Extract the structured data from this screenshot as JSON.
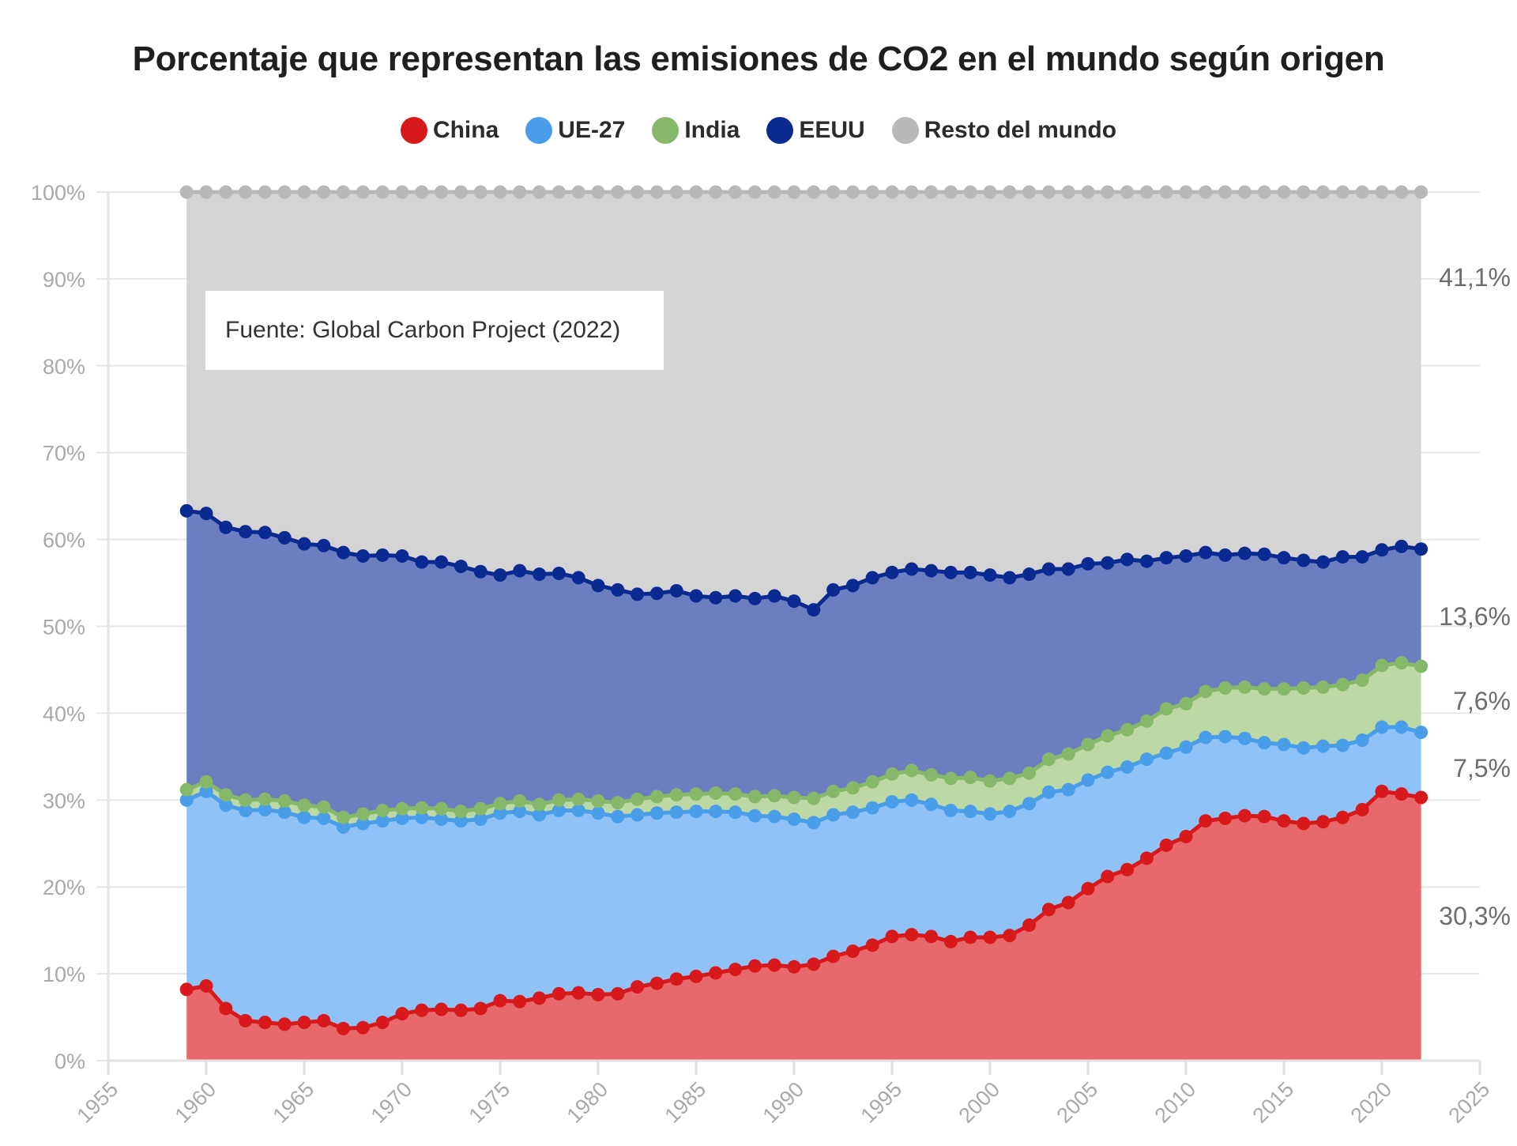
{
  "chart_data": {
    "type": "area",
    "stacked": true,
    "title": "Porcentaje que representan las emisiones de CO2 en el mundo según origen",
    "xlabel": "",
    "ylabel": "",
    "xlim": [
      1955,
      2025
    ],
    "ylim": [
      0,
      100
    ],
    "x_ticks": [
      "1955",
      "1960",
      "1965",
      "1970",
      "1975",
      "1980",
      "1985",
      "1990",
      "1995",
      "2000",
      "2005",
      "2010",
      "2015",
      "2020",
      "2025"
    ],
    "y_ticks": [
      "0%",
      "10%",
      "20%",
      "30%",
      "40%",
      "50%",
      "60%",
      "70%",
      "80%",
      "90%",
      "100%"
    ],
    "grid": true,
    "legend_position": "top-center",
    "annotation": "Fuente: Global Carbon Project (2022)",
    "x_start": 1959,
    "x_end": 2022,
    "series_note": "values are cumulative stacked tops (%) per year 1959-2022",
    "series": [
      {
        "name": "China",
        "color": "#d7191c",
        "fill": "#e8696b",
        "end_label": "30,3%",
        "values": [
          8.2,
          8.6,
          6.0,
          4.6,
          4.4,
          4.2,
          4.4,
          4.6,
          3.7,
          3.8,
          4.4,
          5.4,
          5.8,
          5.9,
          5.8,
          6.0,
          6.9,
          6.8,
          7.2,
          7.7,
          7.8,
          7.6,
          7.7,
          8.5,
          8.9,
          9.4,
          9.7,
          10.1,
          10.5,
          10.9,
          11.0,
          10.8,
          11.1,
          12.0,
          12.6,
          13.3,
          14.3,
          14.5,
          14.3,
          13.7,
          14.2,
          14.2,
          14.4,
          15.6,
          17.4,
          18.2,
          19.8,
          21.2,
          22.0,
          23.3,
          24.8,
          25.8,
          27.6,
          27.9,
          28.2,
          28.1,
          27.6,
          27.3,
          27.5,
          28.0,
          28.9,
          31.0,
          30.7,
          30.3
        ]
      },
      {
        "name": "UE-27",
        "color": "#4a9de8",
        "fill": "#8fc2f7",
        "end_label": "7,5%",
        "values": [
          30.0,
          31.0,
          29.4,
          28.8,
          28.9,
          28.6,
          28.0,
          27.9,
          26.9,
          27.3,
          27.6,
          27.9,
          28.0,
          27.8,
          27.6,
          27.8,
          28.5,
          28.7,
          28.3,
          28.8,
          28.8,
          28.5,
          28.1,
          28.3,
          28.5,
          28.6,
          28.7,
          28.7,
          28.6,
          28.2,
          28.1,
          27.8,
          27.4,
          28.3,
          28.6,
          29.1,
          29.8,
          30.0,
          29.5,
          28.8,
          28.7,
          28.4,
          28.7,
          29.6,
          30.9,
          31.2,
          32.3,
          33.2,
          33.8,
          34.7,
          35.4,
          36.1,
          37.2,
          37.3,
          37.1,
          36.6,
          36.4,
          36.0,
          36.2,
          36.3,
          36.9,
          38.4,
          38.4,
          37.8
        ]
      },
      {
        "name": "India",
        "color": "#86b86a",
        "fill": "#bcd8a4",
        "end_label": "7,6%",
        "values": [
          31.2,
          32.1,
          30.6,
          30.0,
          30.1,
          29.9,
          29.4,
          29.2,
          28.0,
          28.4,
          28.8,
          29.0,
          29.1,
          29.0,
          28.7,
          29.0,
          29.6,
          29.9,
          29.5,
          30.0,
          30.1,
          29.9,
          29.7,
          30.1,
          30.4,
          30.6,
          30.7,
          30.8,
          30.7,
          30.4,
          30.5,
          30.3,
          30.2,
          31.0,
          31.4,
          32.1,
          33.0,
          33.4,
          32.9,
          32.5,
          32.6,
          32.2,
          32.5,
          33.1,
          34.7,
          35.3,
          36.4,
          37.4,
          38.1,
          39.1,
          40.5,
          41.1,
          42.5,
          42.9,
          43.0,
          42.8,
          42.8,
          42.9,
          43.0,
          43.3,
          43.8,
          45.5,
          45.8,
          45.4
        ]
      },
      {
        "name": "EEUU",
        "color": "#0a2a92",
        "fill": "#6a7ec0",
        "end_label": "13,6%",
        "values": [
          63.3,
          63.0,
          61.4,
          60.9,
          60.8,
          60.2,
          59.5,
          59.3,
          58.5,
          58.1,
          58.2,
          58.1,
          57.4,
          57.4,
          56.9,
          56.3,
          55.9,
          56.4,
          56.0,
          56.1,
          55.6,
          54.7,
          54.2,
          53.7,
          53.8,
          54.1,
          53.5,
          53.3,
          53.5,
          53.2,
          53.5,
          52.9,
          51.9,
          54.2,
          54.7,
          55.6,
          56.2,
          56.6,
          56.4,
          56.2,
          56.2,
          55.9,
          55.6,
          56.0,
          56.6,
          56.6,
          57.2,
          57.3,
          57.7,
          57.5,
          57.9,
          58.1,
          58.5,
          58.2,
          58.4,
          58.3,
          57.9,
          57.6,
          57.4,
          58.0,
          58.0,
          58.8,
          59.2,
          58.9
        ]
      },
      {
        "name": "Resto del mundo",
        "color": "#b8b8b8",
        "fill": "#d4d4d4",
        "end_label": "41,1%",
        "values": [
          100,
          100,
          100,
          100,
          100,
          100,
          100,
          100,
          100,
          100,
          100,
          100,
          100,
          100,
          100,
          100,
          100,
          100,
          100,
          100,
          100,
          100,
          100,
          100,
          100,
          100,
          100,
          100,
          100,
          100,
          100,
          100,
          100,
          100,
          100,
          100,
          100,
          100,
          100,
          100,
          100,
          100,
          100,
          100,
          100,
          100,
          100,
          100,
          100,
          100,
          100,
          100,
          100,
          100,
          100,
          100,
          100,
          100,
          100,
          100,
          100,
          100,
          100,
          100
        ]
      }
    ]
  }
}
